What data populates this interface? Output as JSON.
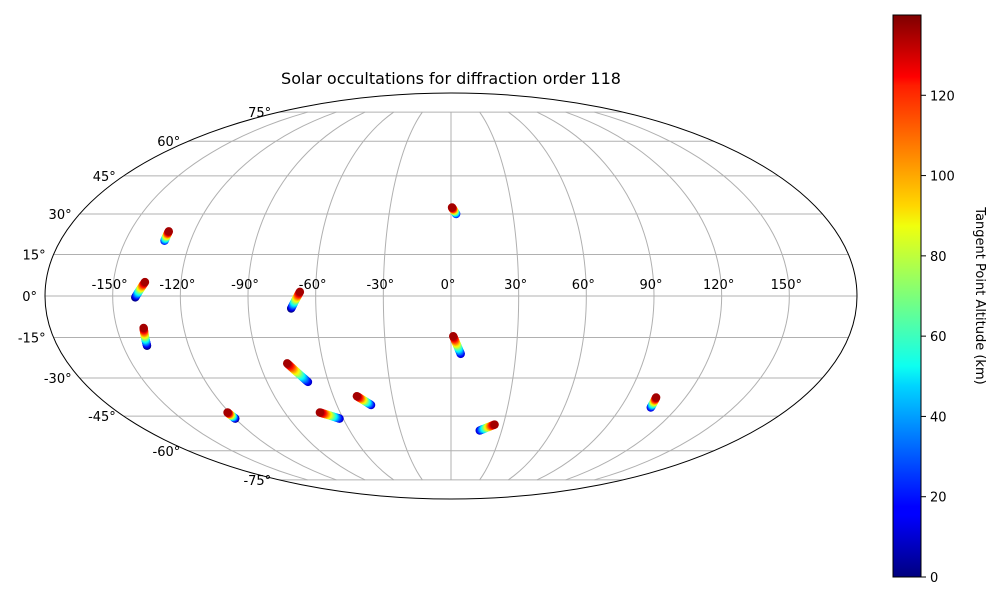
{
  "chart_data": {
    "type": "scatter",
    "projection": "mollweide",
    "title": "Solar occultations for diffraction order 118",
    "grid": true,
    "longitude_ticks": [
      -150,
      -120,
      -90,
      -60,
      -30,
      0,
      30,
      60,
      90,
      120,
      150
    ],
    "longitude_tick_labels": [
      "-150°",
      "-120°",
      "-90°",
      "-60°",
      "-30°",
      "0°",
      "30°",
      "60°",
      "90°",
      "120°",
      "150°"
    ],
    "latitude_ticks": [
      -75,
      -60,
      -45,
      -30,
      -15,
      0,
      15,
      30,
      45,
      60,
      75
    ],
    "latitude_tick_labels": [
      "-75°",
      "-60°",
      "-45°",
      "-30°",
      "-15°",
      "0°",
      "15°",
      "30°",
      "45°",
      "60°",
      "75°"
    ],
    "colorbar": {
      "label": "Tangent Point Altitude (km)",
      "colormap": "jet",
      "range": [
        0,
        140
      ],
      "ticks": [
        0,
        20,
        40,
        60,
        80,
        100,
        120
      ],
      "tick_labels": [
        "0",
        "20",
        "40",
        "60",
        "80",
        "100",
        "120"
      ]
    },
    "tracks": [
      {
        "lon_low": 2.5,
        "lat_low": 30,
        "lon_high": 0.5,
        "lat_high": 32.5,
        "alt_range": [
          20,
          135
        ]
      },
      {
        "lon_low": -132,
        "lat_low": 20,
        "lon_high": -132,
        "lat_high": 23.5,
        "alt_range": [
          20,
          135
        ]
      },
      {
        "lon_low": -140,
        "lat_low": -0.5,
        "lon_high": -136,
        "lat_high": 5,
        "alt_range": [
          0,
          135
        ]
      },
      {
        "lon_low": -139,
        "lat_low": -18,
        "lon_high": -138,
        "lat_high": -11.5,
        "alt_range": [
          0,
          135
        ]
      },
      {
        "lon_low": -71,
        "lat_low": -4.5,
        "lon_high": -67,
        "lat_high": 1.5,
        "alt_range": [
          0,
          135
        ]
      },
      {
        "lon_low": 4.5,
        "lat_low": -21,
        "lon_high": 1,
        "lat_high": -14.5,
        "alt_range": [
          10,
          135
        ]
      },
      {
        "lon_low": -70,
        "lat_low": -31.5,
        "lon_high": -77,
        "lat_high": -24.5,
        "alt_range": [
          10,
          135
        ]
      },
      {
        "lon_low": -42,
        "lat_low": -40.5,
        "lon_high": -48,
        "lat_high": -37,
        "alt_range": [
          10,
          135
        ]
      },
      {
        "lon_low": 106,
        "lat_low": -41.5,
        "lon_high": 105,
        "lat_high": -37.5,
        "alt_range": [
          10,
          135
        ]
      },
      {
        "lon_low": 17,
        "lat_low": -51,
        "lon_high": 25,
        "lat_high": -48.5,
        "alt_range": [
          10,
          135
        ]
      },
      {
        "lon_low": -62,
        "lat_low": -46,
        "lon_high": -71,
        "lat_high": -43.5,
        "alt_range": [
          10,
          135
        ]
      },
      {
        "lon_low": -120,
        "lat_low": -46,
        "lon_high": -121,
        "lat_high": -43.5,
        "alt_range": [
          0,
          135
        ]
      }
    ]
  }
}
